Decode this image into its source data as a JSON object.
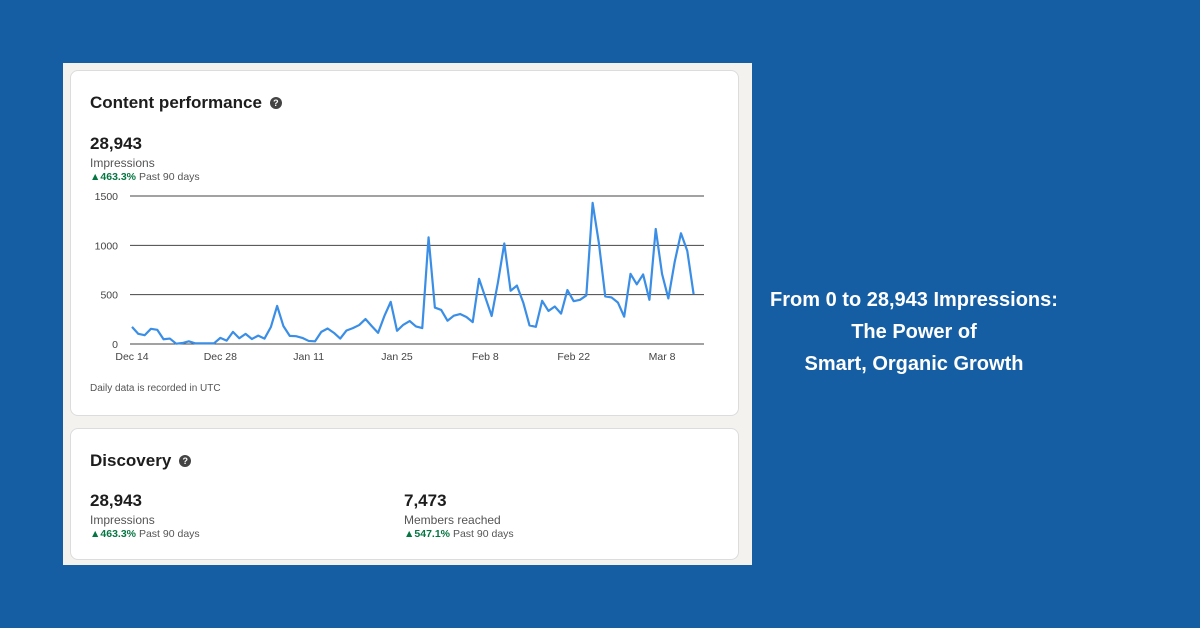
{
  "content_performance": {
    "title": "Content performance",
    "help_icon": "question-circle-icon",
    "impressions": "28,943",
    "impressions_label": "Impressions",
    "change": "463.3%",
    "period": "Past 90 days",
    "note": "Daily data is recorded in UTC"
  },
  "discovery": {
    "title": "Discovery",
    "help_icon": "question-circle-icon",
    "impressions": "28,943",
    "impressions_label": "Impressions",
    "impressions_change": "463.3%",
    "members": "7,473",
    "members_label": "Members reached",
    "members_change": "547.1%",
    "period": "Past 90 days"
  },
  "headline": {
    "line1": "From 0 to 28,943 Impressions:",
    "line2": "The Power of",
    "line3": "Smart, Organic Growth"
  },
  "colors": {
    "background": "#155ea4",
    "line": "#3b8ee6",
    "positive": "#057642"
  },
  "chart_data": {
    "type": "line",
    "ylim": [
      0,
      1500
    ],
    "y_ticks": [
      "0",
      "500",
      "1000",
      "1500"
    ],
    "x_ticks": [
      "Dec 14",
      "Dec 28",
      "Jan 11",
      "Jan 25",
      "Feb 8",
      "Feb 22",
      "Mar 8"
    ],
    "grid": true,
    "x": [
      "Dec 14",
      "Dec 15",
      "Dec 16",
      "Dec 17",
      "Dec 18",
      "Dec 19",
      "Dec 20",
      "Dec 21",
      "Dec 22",
      "Dec 23",
      "Dec 24",
      "Dec 25",
      "Dec 26",
      "Dec 27",
      "Dec 28",
      "Dec 29",
      "Dec 30",
      "Dec 31",
      "Jan 1",
      "Jan 2",
      "Jan 3",
      "Jan 4",
      "Jan 5",
      "Jan 6",
      "Jan 7",
      "Jan 8",
      "Jan 9",
      "Jan 10",
      "Jan 11",
      "Jan 12",
      "Jan 13",
      "Jan 14",
      "Jan 15",
      "Jan 16",
      "Jan 17",
      "Jan 18",
      "Jan 19",
      "Jan 20",
      "Jan 21",
      "Jan 22",
      "Jan 23",
      "Jan 24",
      "Jan 25",
      "Jan 26",
      "Jan 27",
      "Jan 28",
      "Jan 29",
      "Jan 30",
      "Jan 31",
      "Feb 1",
      "Feb 2",
      "Feb 3",
      "Feb 4",
      "Feb 5",
      "Feb 6",
      "Feb 7",
      "Feb 8",
      "Feb 9",
      "Feb 10",
      "Feb 11",
      "Feb 12",
      "Feb 13",
      "Feb 14",
      "Feb 15",
      "Feb 16",
      "Feb 17",
      "Feb 18",
      "Feb 19",
      "Feb 20",
      "Feb 21",
      "Feb 22",
      "Feb 23",
      "Feb 24",
      "Feb 25",
      "Feb 26",
      "Feb 27",
      "Feb 28",
      "Mar 1",
      "Mar 2",
      "Mar 3",
      "Mar 4",
      "Mar 5",
      "Mar 6",
      "Mar 7",
      "Mar 8",
      "Mar 9",
      "Mar 10",
      "Mar 11",
      "Mar 12",
      "Mar 13"
    ],
    "values": [
      174,
      103,
      89,
      154,
      144,
      48,
      55,
      3,
      10,
      27,
      7,
      7,
      7,
      7,
      62,
      34,
      123,
      58,
      103,
      51,
      85,
      55,
      171,
      386,
      181,
      82,
      79,
      62,
      31,
      27,
      123,
      157,
      113,
      55,
      137,
      161,
      192,
      253,
      181,
      113,
      284,
      427,
      134,
      195,
      233,
      178,
      161,
      1081,
      369,
      345,
      236,
      287,
      304,
      274,
      222,
      660,
      472,
      284,
      626,
      1019,
      540,
      592,
      421,
      188,
      174,
      438,
      335,
      380,
      308,
      547,
      434,
      448,
      492,
      1430,
      1019,
      482,
      472,
      421,
      277,
      711,
      605,
      705,
      448,
      1166,
      711,
      462,
      831,
      1122,
      944,
      506
    ]
  }
}
